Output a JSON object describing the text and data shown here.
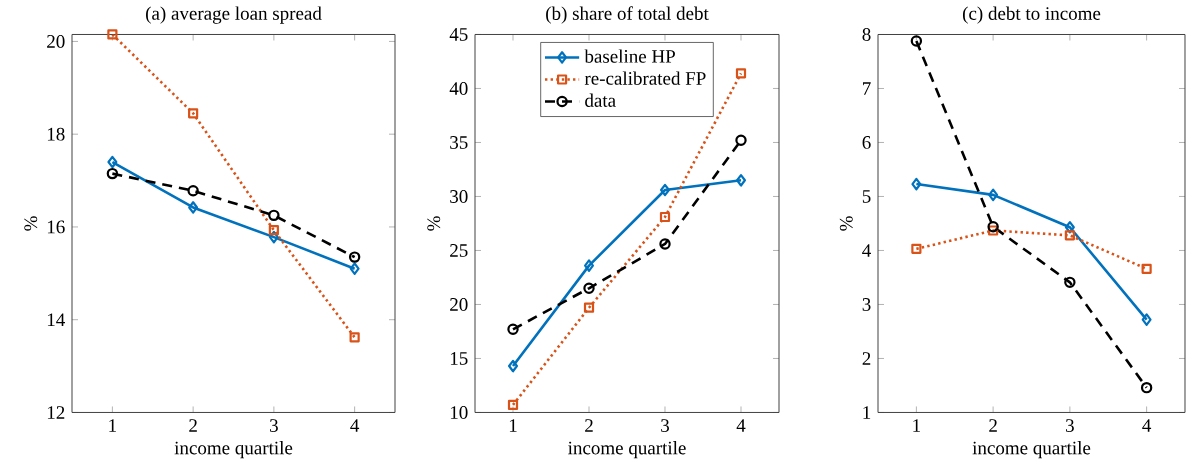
{
  "chart_data": [
    {
      "type": "line",
      "title": "(a) average loan spread",
      "xlabel": "income quartile",
      "ylabel": "%",
      "x": [
        1,
        2,
        3,
        4
      ],
      "xlim": [
        0.5,
        4.5
      ],
      "xticks": [
        1,
        2,
        3,
        4
      ],
      "ylim": [
        12,
        20.15
      ],
      "yticks": [
        12,
        14,
        16,
        18,
        20
      ],
      "legend": false,
      "series": [
        {
          "color": "#0072bd",
          "marker": "diamond",
          "line_style": "solid",
          "values": [
            17.4,
            16.42,
            15.78,
            15.1
          ]
        },
        {
          "color": "#d95319",
          "marker": "square",
          "line_style": "dotted",
          "values": [
            20.15,
            18.45,
            15.93,
            13.62
          ]
        },
        {
          "color": "#000000",
          "marker": "circle",
          "line_style": "dashed",
          "values": [
            17.15,
            16.78,
            16.25,
            15.35
          ]
        }
      ]
    },
    {
      "type": "line",
      "title": "(b) share of total debt",
      "xlabel": "income quartile",
      "ylabel": "%",
      "x": [
        1,
        2,
        3,
        4
      ],
      "xlim": [
        0.5,
        4.5
      ],
      "xticks": [
        1,
        2,
        3,
        4
      ],
      "ylim": [
        10,
        45
      ],
      "yticks": [
        10,
        15,
        20,
        25,
        30,
        35,
        40,
        45
      ],
      "legend": "top",
      "series": [
        {
          "name": "baseline HP",
          "color": "#0072bd",
          "marker": "diamond",
          "line_style": "solid",
          "values": [
            14.3,
            23.6,
            30.6,
            31.5
          ]
        },
        {
          "name": "re-calibrated FP",
          "color": "#d95319",
          "marker": "square",
          "line_style": "dotted",
          "values": [
            10.7,
            19.7,
            28.1,
            41.4
          ]
        },
        {
          "name": "data",
          "color": "#000000",
          "marker": "circle",
          "line_style": "dashed",
          "values": [
            17.7,
            21.5,
            25.6,
            35.2
          ]
        }
      ]
    },
    {
      "type": "line",
      "title": "(c) debt to income",
      "xlabel": "income quartile",
      "ylabel": "%",
      "x": [
        1,
        2,
        3,
        4
      ],
      "xlim": [
        0.5,
        4.5
      ],
      "xticks": [
        1,
        2,
        3,
        4
      ],
      "ylim": [
        1,
        8
      ],
      "yticks": [
        1,
        2,
        3,
        4,
        5,
        6,
        7,
        8
      ],
      "legend": false,
      "series": [
        {
          "color": "#0072bd",
          "marker": "diamond",
          "line_style": "solid",
          "values": [
            5.23,
            5.03,
            4.43,
            2.72
          ]
        },
        {
          "color": "#d95319",
          "marker": "square",
          "line_style": "dotted",
          "values": [
            4.03,
            4.37,
            4.28,
            3.66
          ]
        },
        {
          "color": "#000000",
          "marker": "circle",
          "line_style": "dashed",
          "values": [
            7.88,
            4.44,
            3.41,
            1.46
          ]
        }
      ]
    }
  ]
}
